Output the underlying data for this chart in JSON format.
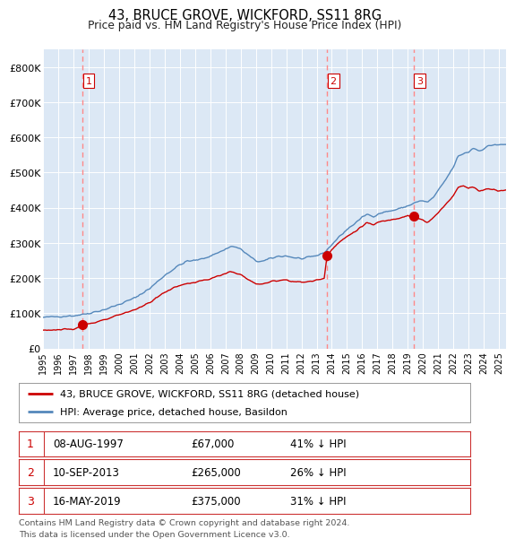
{
  "title": "43, BRUCE GROVE, WICKFORD, SS11 8RG",
  "subtitle": "Price paid vs. HM Land Registry's House Price Index (HPI)",
  "xlim": [
    1995.0,
    2025.5
  ],
  "ylim": [
    0,
    850000
  ],
  "yticks": [
    0,
    100000,
    200000,
    300000,
    400000,
    500000,
    600000,
    700000,
    800000
  ],
  "ytick_labels": [
    "£0",
    "£100K",
    "£200K",
    "£300K",
    "£400K",
    "£500K",
    "£600K",
    "£700K",
    "£800K"
  ],
  "plot_bg_color": "#dce8f5",
  "red_line_color": "#cc0000",
  "blue_line_color": "#5588bb",
  "vline_color": "#ff8888",
  "sale_dates": [
    1997.586,
    2013.69,
    2019.37
  ],
  "sale_prices": [
    67000,
    265000,
    375000
  ],
  "sale_labels": [
    "1",
    "2",
    "3"
  ],
  "legend_red_label": "43, BRUCE GROVE, WICKFORD, SS11 8RG (detached house)",
  "legend_blue_label": "HPI: Average price, detached house, Basildon",
  "table_rows": [
    [
      "1",
      "08-AUG-1997",
      "£67,000",
      "41% ↓ HPI"
    ],
    [
      "2",
      "10-SEP-2013",
      "£265,000",
      "26% ↓ HPI"
    ],
    [
      "3",
      "16-MAY-2019",
      "£375,000",
      "31% ↓ HPI"
    ]
  ],
  "footer": "Contains HM Land Registry data © Crown copyright and database right 2024.\nThis data is licensed under the Open Government Licence v3.0."
}
